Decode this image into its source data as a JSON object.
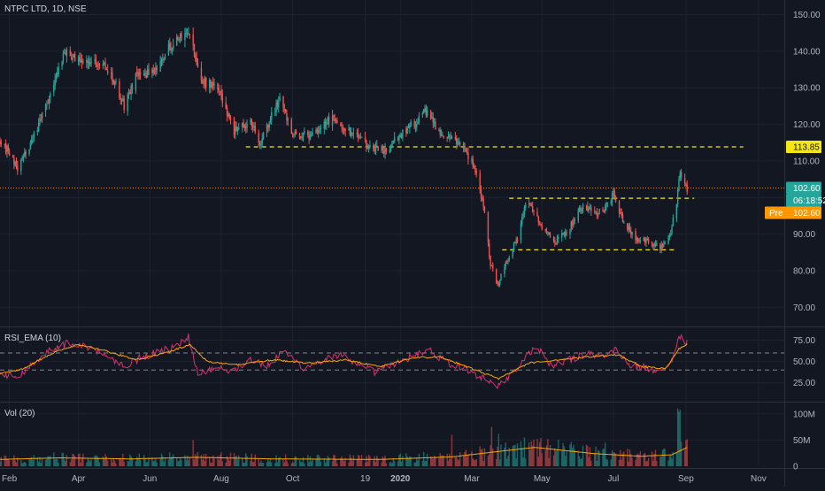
{
  "header": {
    "title": "NTPC LTD, 1D, NSE"
  },
  "panes": {
    "rsi": {
      "title": "RSI_EMA (10)"
    },
    "vol": {
      "title": "Vol (20)"
    }
  },
  "price_axis": {
    "ticks": [
      "150.00",
      "140.00",
      "130.00",
      "120.00",
      "110.00",
      "100.00",
      "90.00",
      "80.00",
      "70.00"
    ]
  },
  "rsi_axis": {
    "ticks": [
      "75.00",
      "50.00",
      "25.00"
    ]
  },
  "vol_axis": {
    "ticks": [
      "100M",
      "50M",
      "0"
    ]
  },
  "time_axis": {
    "labels": [
      "Feb",
      "Apr",
      "Jun",
      "Aug",
      "Oct",
      "19",
      "2020",
      "Mar",
      "May",
      "Jul",
      "Sep",
      "Nov"
    ]
  },
  "badges": {
    "level": "113.85",
    "last": "102.60",
    "countdown": "06:18:52",
    "pre_label": "Pre",
    "pre_value": "102.60"
  },
  "colors": {
    "background": "#131722",
    "up": "#26a69a",
    "down": "#ef5350",
    "level_line": "#f5e614",
    "rsi_line": "#d6336c",
    "ema_line": "#f7a600",
    "vol_ma": "#f7a600",
    "pre_badge": "#ff9800"
  },
  "chart_data": [
    {
      "type": "candlestick",
      "title": "NTPC LTD, 1D, NSE",
      "ylim": [
        65,
        154
      ],
      "anchors": [
        [
          "2019-01-24",
          116
        ],
        [
          "2019-02-08",
          108
        ],
        [
          "2019-02-20",
          115
        ],
        [
          "2019-03-06",
          127
        ],
        [
          "2019-03-20",
          140
        ],
        [
          "2019-04-05",
          137
        ],
        [
          "2019-04-22",
          137
        ],
        [
          "2019-05-03",
          131
        ],
        [
          "2019-05-10",
          125
        ],
        [
          "2019-05-20",
          133
        ],
        [
          "2019-06-05",
          135
        ],
        [
          "2019-06-20",
          142
        ],
        [
          "2019-07-01",
          144
        ],
        [
          "2019-07-04",
          146
        ],
        [
          "2019-07-15",
          132
        ],
        [
          "2019-07-29",
          130
        ],
        [
          "2019-08-12",
          118
        ],
        [
          "2019-08-26",
          121
        ],
        [
          "2019-09-03",
          115
        ],
        [
          "2019-09-10",
          120
        ],
        [
          "2019-09-20",
          127
        ],
        [
          "2019-10-01",
          117
        ],
        [
          "2019-10-20",
          117
        ],
        [
          "2019-11-04",
          122
        ],
        [
          "2019-11-20",
          118
        ],
        [
          "2019-12-05",
          114
        ],
        [
          "2019-12-20",
          113
        ],
        [
          "2019-12-31",
          117
        ],
        [
          "2020-01-15",
          121
        ],
        [
          "2020-01-24",
          124
        ],
        [
          "2020-02-03",
          118
        ],
        [
          "2020-02-12",
          117
        ],
        [
          "2020-02-21",
          115
        ],
        [
          "2020-02-27",
          112
        ],
        [
          "2020-03-05",
          108
        ],
        [
          "2020-03-12",
          98
        ],
        [
          "2020-03-18",
          82
        ],
        [
          "2020-03-24",
          76
        ],
        [
          "2020-03-31",
          82
        ],
        [
          "2020-04-10",
          89
        ],
        [
          "2020-04-18",
          100
        ],
        [
          "2020-05-01",
          92
        ],
        [
          "2020-05-12",
          88
        ],
        [
          "2020-05-25",
          92
        ],
        [
          "2020-06-05",
          98
        ],
        [
          "2020-06-15",
          96
        ],
        [
          "2020-06-22",
          96
        ],
        [
          "2020-07-01",
          101
        ],
        [
          "2020-07-10",
          93
        ],
        [
          "2020-07-20",
          89
        ],
        [
          "2020-08-01",
          88
        ],
        [
          "2020-08-10",
          86
        ],
        [
          "2020-08-18",
          89
        ],
        [
          "2020-08-24",
          99
        ],
        [
          "2020-08-27",
          107
        ],
        [
          "2020-08-31",
          103
        ],
        [
          "2020-09-02",
          102.6
        ]
      ],
      "level_lines": [
        {
          "price": 113.85,
          "from": "2019-08-22",
          "to": "2020-10-20"
        },
        {
          "price": 99.8,
          "from": "2020-04-03",
          "to": "2020-09-08"
        },
        {
          "price": 85.7,
          "from": "2020-03-28",
          "to": "2020-08-24"
        }
      ],
      "last_price": 102.6
    },
    {
      "type": "line",
      "title": "RSI_EMA (10)",
      "ylim": [
        5,
        90
      ],
      "reference_lines": [
        60,
        40
      ],
      "series": [
        {
          "name": "RSI",
          "anchors": [
            [
              "2019-01-24",
              38
            ],
            [
              "2019-02-08",
              30
            ],
            [
              "2019-02-22",
              50
            ],
            [
              "2019-03-10",
              65
            ],
            [
              "2019-03-25",
              72
            ],
            [
              "2019-04-20",
              62
            ],
            [
              "2019-05-10",
              45
            ],
            [
              "2019-05-25",
              55
            ],
            [
              "2019-06-10",
              62
            ],
            [
              "2019-06-25",
              68
            ],
            [
              "2019-07-04",
              80
            ],
            [
              "2019-07-12",
              35
            ],
            [
              "2019-07-30",
              45
            ],
            [
              "2019-08-10",
              38
            ],
            [
              "2019-08-26",
              52
            ],
            [
              "2019-09-10",
              45
            ],
            [
              "2019-09-24",
              62
            ],
            [
              "2019-10-10",
              42
            ],
            [
              "2019-10-28",
              52
            ],
            [
              "2019-11-10",
              58
            ],
            [
              "2019-11-25",
              45
            ],
            [
              "2019-12-10",
              38
            ],
            [
              "2019-12-24",
              45
            ],
            [
              "2020-01-10",
              55
            ],
            [
              "2020-01-25",
              65
            ],
            [
              "2020-02-10",
              48
            ],
            [
              "2020-02-28",
              40
            ],
            [
              "2020-03-12",
              30
            ],
            [
              "2020-03-24",
              22
            ],
            [
              "2020-04-03",
              32
            ],
            [
              "2020-04-18",
              55
            ],
            [
              "2020-04-26",
              68
            ],
            [
              "2020-05-08",
              45
            ],
            [
              "2020-05-25",
              52
            ],
            [
              "2020-06-10",
              60
            ],
            [
              "2020-06-25",
              55
            ],
            [
              "2020-07-03",
              65
            ],
            [
              "2020-07-15",
              45
            ],
            [
              "2020-08-01",
              42
            ],
            [
              "2020-08-14",
              38
            ],
            [
              "2020-08-20",
              50
            ],
            [
              "2020-08-26",
              82
            ],
            [
              "2020-09-02",
              72
            ]
          ]
        },
        {
          "name": "EMA",
          "anchors": [
            [
              "2019-01-24",
              36
            ],
            [
              "2019-02-10",
              40
            ],
            [
              "2019-03-10",
              60
            ],
            [
              "2019-04-01",
              70
            ],
            [
              "2019-04-25",
              62
            ],
            [
              "2019-05-20",
              52
            ],
            [
              "2019-06-15",
              60
            ],
            [
              "2019-07-05",
              70
            ],
            [
              "2019-07-20",
              50
            ],
            [
              "2019-08-15",
              46
            ],
            [
              "2019-09-15",
              52
            ],
            [
              "2019-10-15",
              48
            ],
            [
              "2019-11-15",
              52
            ],
            [
              "2019-12-15",
              44
            ],
            [
              "2020-01-15",
              55
            ],
            [
              "2020-02-05",
              55
            ],
            [
              "2020-03-01",
              42
            ],
            [
              "2020-03-25",
              30
            ],
            [
              "2020-04-20",
              48
            ],
            [
              "2020-05-15",
              52
            ],
            [
              "2020-06-15",
              56
            ],
            [
              "2020-07-05",
              58
            ],
            [
              "2020-07-25",
              44
            ],
            [
              "2020-08-15",
              42
            ],
            [
              "2020-08-26",
              65
            ],
            [
              "2020-09-02",
              70
            ]
          ]
        }
      ]
    },
    {
      "type": "bar",
      "title": "Vol (20)",
      "ylim": [
        0,
        120000000
      ],
      "volume_ma": [
        [
          "2019-01-24",
          13000000
        ],
        [
          "2019-03-15",
          16000000
        ],
        [
          "2019-05-15",
          14000000
        ],
        [
          "2019-07-10",
          17000000
        ],
        [
          "2019-09-15",
          14000000
        ],
        [
          "2019-12-15",
          13000000
        ],
        [
          "2020-02-15",
          18000000
        ],
        [
          "2020-03-20",
          27000000
        ],
        [
          "2020-04-25",
          36000000
        ],
        [
          "2020-06-15",
          24000000
        ],
        [
          "2020-07-25",
          19000000
        ],
        [
          "2020-08-20",
          22000000
        ],
        [
          "2020-09-02",
          36000000
        ]
      ],
      "spikes": [
        [
          "2020-08-25",
          110000000
        ],
        [
          "2020-08-26",
          104000000
        ],
        [
          "2020-08-27",
          108000000
        ],
        [
          "2020-03-19",
          75000000
        ],
        [
          "2020-03-25",
          62000000
        ],
        [
          "2020-02-14",
          60000000
        ],
        [
          "2019-07-08",
          50000000
        ],
        [
          "2020-06-24",
          45000000
        ]
      ]
    }
  ]
}
